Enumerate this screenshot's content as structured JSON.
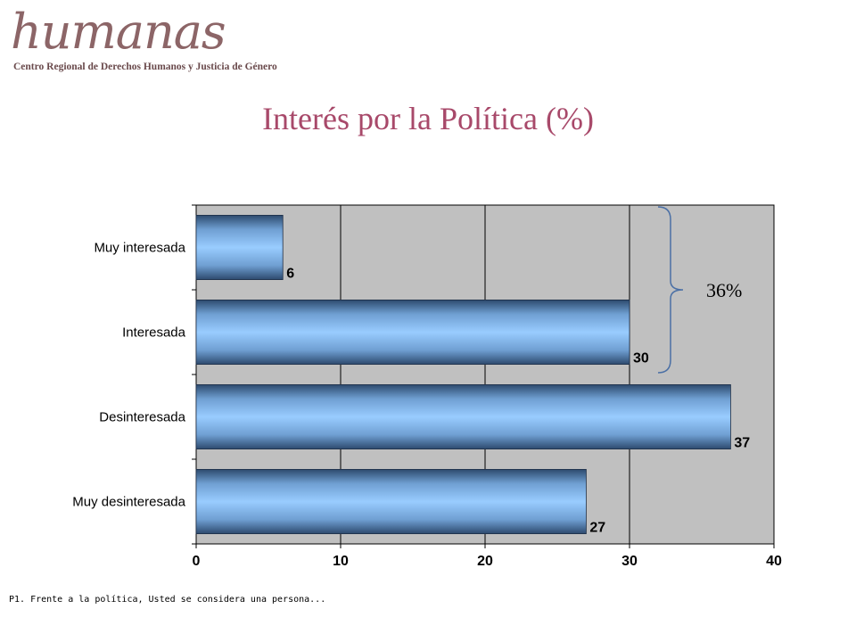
{
  "logo": {
    "wordmark": "humanas",
    "subtitle": "Centro Regional de Derechos Humanos y Justicia de Género"
  },
  "footnote": "P1. Frente a la política, Usted se considera una persona...",
  "colors": {
    "title": "#a8496a",
    "plot_background": "#c0c0c0",
    "bar_light": "#99ccff",
    "bar_dark": "#2d4a6e"
  },
  "chart_data": {
    "type": "bar",
    "orientation": "horizontal",
    "title": "Interés por la Política (%)",
    "categories": [
      "Muy interesada",
      "Interesada",
      "Desinteresada",
      "Muy desinteresada"
    ],
    "values": [
      6,
      30,
      37,
      27
    ],
    "data_labels": [
      "6",
      "30",
      "37",
      "27"
    ],
    "xlim": [
      0,
      40
    ],
    "xticks": [
      "0",
      "10",
      "20",
      "30",
      "40"
    ],
    "grid": true,
    "annotation": {
      "text": "36%",
      "spans_categories": [
        "Muy interesada",
        "Interesada"
      ]
    }
  }
}
